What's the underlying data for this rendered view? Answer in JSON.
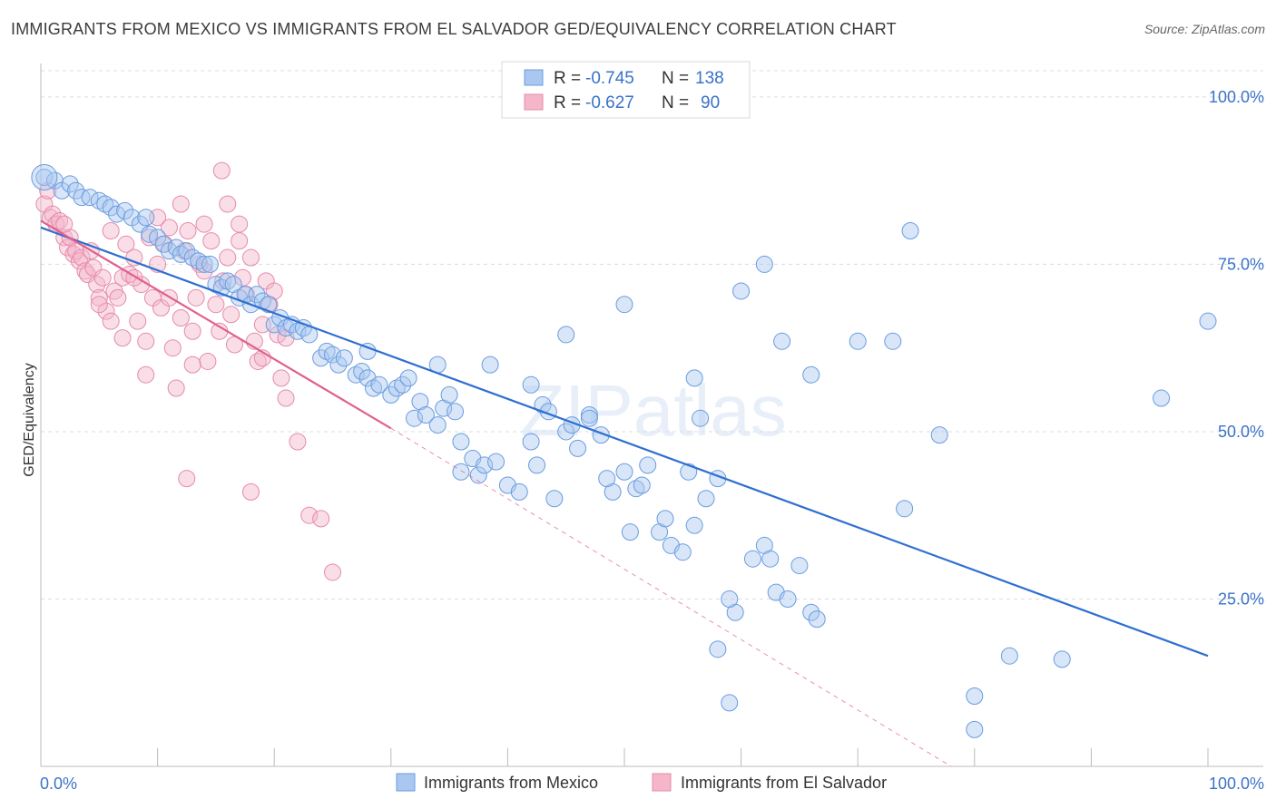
{
  "title": "IMMIGRANTS FROM MEXICO VS IMMIGRANTS FROM EL SALVADOR GED/EQUIVALENCY CORRELATION CHART",
  "source": "Source: ZipAtlas.com",
  "watermark": "ZIPatlas",
  "colors": {
    "blue": "#2e6fd1",
    "blue_fill": "#a9c7f0",
    "pink": "#e0608e",
    "pink_fill": "#f5b6ca",
    "axis_text": "#3a72c9"
  },
  "legend": {
    "r_label": "R =",
    "n_label": "N =",
    "rows": [
      {
        "r": "-0.745",
        "n": "138"
      },
      {
        "r": "-0.627",
        "n": "90"
      }
    ]
  },
  "chart_data": {
    "type": "scatter",
    "xlabel": "",
    "ylabel": "GED/Equivalency",
    "xlim": [
      0,
      100
    ],
    "ylim": [
      0,
      105
    ],
    "x_tick_labels": [
      "0.0%",
      "100.0%"
    ],
    "y_tick_labels": [
      "100.0%",
      "75.0%",
      "50.0%",
      "25.0%"
    ],
    "y_ticks": [
      100,
      75,
      50,
      25
    ],
    "grid": true,
    "legend_placement": "bottom",
    "series": [
      {
        "name": "Immigrants from Mexico",
        "color": "blue",
        "trend": [
          [
            0,
            80.5
          ],
          [
            100,
            16.5
          ]
        ],
        "points": [
          [
            0.3,
            88
          ],
          [
            1.2,
            87.5
          ],
          [
            1.8,
            86
          ],
          [
            2.5,
            87
          ],
          [
            3,
            86
          ],
          [
            3.5,
            85
          ],
          [
            4.2,
            85
          ],
          [
            5,
            84.5
          ],
          [
            5.5,
            84
          ],
          [
            6,
            83.5
          ],
          [
            6.5,
            82.5
          ],
          [
            7.2,
            83
          ],
          [
            7.8,
            82
          ],
          [
            8.5,
            81
          ],
          [
            9,
            82
          ],
          [
            9.3,
            79.5
          ],
          [
            10,
            79
          ],
          [
            10.5,
            78
          ],
          [
            11,
            77
          ],
          [
            11.6,
            77.5
          ],
          [
            12,
            76.5
          ],
          [
            12.5,
            77
          ],
          [
            13,
            76
          ],
          [
            13.5,
            75.5
          ],
          [
            14,
            75
          ],
          [
            14.5,
            75
          ],
          [
            15,
            72
          ],
          [
            15.5,
            71.5
          ],
          [
            16,
            72.5
          ],
          [
            16.5,
            72
          ],
          [
            17,
            70
          ],
          [
            17.5,
            70.5
          ],
          [
            18,
            69
          ],
          [
            18.5,
            70.5
          ],
          [
            19,
            69.5
          ],
          [
            19.5,
            69
          ],
          [
            20,
            66
          ],
          [
            20.5,
            67
          ],
          [
            21,
            65.5
          ],
          [
            21.5,
            66
          ],
          [
            22,
            65
          ],
          [
            22.5,
            65.5
          ],
          [
            23,
            64.5
          ],
          [
            24,
            61
          ],
          [
            24.5,
            62
          ],
          [
            25,
            61.5
          ],
          [
            25.5,
            60
          ],
          [
            26,
            61
          ],
          [
            27,
            58.5
          ],
          [
            27.5,
            59
          ],
          [
            28,
            58
          ],
          [
            28.5,
            56.5
          ],
          [
            29,
            57
          ],
          [
            30,
            55.5
          ],
          [
            30.5,
            56.5
          ],
          [
            31,
            57
          ],
          [
            31.5,
            58
          ],
          [
            32,
            52
          ],
          [
            32.5,
            54.5
          ],
          [
            33,
            52.5
          ],
          [
            34,
            51
          ],
          [
            34.5,
            53.5
          ],
          [
            35,
            55.5
          ],
          [
            35.5,
            53
          ],
          [
            36,
            48.5
          ],
          [
            37,
            46
          ],
          [
            37.5,
            43.5
          ],
          [
            38,
            45
          ],
          [
            39,
            45.5
          ],
          [
            40,
            42
          ],
          [
            41,
            41
          ],
          [
            42,
            48.5
          ],
          [
            42.5,
            45
          ],
          [
            43,
            54
          ],
          [
            43.5,
            53
          ],
          [
            44,
            40
          ],
          [
            45,
            50
          ],
          [
            46,
            47.5
          ],
          [
            47,
            52.5
          ],
          [
            48,
            49.5
          ],
          [
            49,
            41
          ],
          [
            50,
            44
          ],
          [
            50.5,
            35
          ],
          [
            51,
            41.5
          ],
          [
            52,
            45
          ],
          [
            53,
            35
          ],
          [
            53.5,
            37
          ],
          [
            54,
            33
          ],
          [
            55,
            32
          ],
          [
            55.5,
            44
          ],
          [
            56,
            36
          ],
          [
            57,
            40
          ],
          [
            58,
            17.5
          ],
          [
            59,
            9.5
          ],
          [
            59.5,
            23
          ],
          [
            61,
            31
          ],
          [
            62,
            33
          ],
          [
            62.5,
            31
          ],
          [
            63,
            26
          ],
          [
            64,
            25
          ],
          [
            65,
            30
          ],
          [
            66,
            23
          ],
          [
            66.5,
            22
          ],
          [
            56,
            58
          ],
          [
            58,
            43
          ],
          [
            59,
            25
          ],
          [
            62,
            75
          ],
          [
            63.5,
            63.5
          ],
          [
            66,
            58.5
          ],
          [
            70,
            63.5
          ],
          [
            73,
            63.5
          ],
          [
            74,
            38.5
          ],
          [
            74.5,
            80
          ],
          [
            77,
            49.5
          ],
          [
            80,
            10.5
          ],
          [
            80,
            5.5
          ],
          [
            83,
            16.5
          ],
          [
            87.5,
            16
          ],
          [
            96,
            55
          ],
          [
            100,
            66.5
          ],
          [
            50,
            69
          ],
          [
            60,
            71
          ],
          [
            45,
            64.5
          ],
          [
            38.5,
            60
          ],
          [
            28,
            62
          ],
          [
            34,
            60
          ],
          [
            42,
            57
          ],
          [
            47,
            52
          ],
          [
            36,
            44
          ],
          [
            45.5,
            51
          ],
          [
            48.5,
            43
          ],
          [
            51.5,
            42
          ],
          [
            56.5,
            52
          ]
        ]
      },
      {
        "name": "Immigrants from El Salvador",
        "color": "pink",
        "trend": [
          [
            0,
            81.5
          ],
          [
            30,
            50.5
          ]
        ],
        "trend_extension": [
          [
            30,
            50.5
          ],
          [
            78,
            0
          ]
        ],
        "points": [
          [
            0.3,
            84
          ],
          [
            0.6,
            86
          ],
          [
            0.8,
            82
          ],
          [
            1,
            82.5
          ],
          [
            1.3,
            81
          ],
          [
            1.6,
            81.5
          ],
          [
            2,
            79
          ],
          [
            2.3,
            77.5
          ],
          [
            2.5,
            79
          ],
          [
            2.8,
            76.5
          ],
          [
            3,
            77
          ],
          [
            3.3,
            75.5
          ],
          [
            3.5,
            76
          ],
          [
            3.8,
            74
          ],
          [
            4,
            73.5
          ],
          [
            4.3,
            77
          ],
          [
            4.5,
            74.5
          ],
          [
            4.8,
            72
          ],
          [
            5,
            70
          ],
          [
            5.3,
            73
          ],
          [
            5.6,
            68
          ],
          [
            6,
            66.5
          ],
          [
            6.3,
            71
          ],
          [
            6.6,
            70
          ],
          [
            7,
            73
          ],
          [
            7.3,
            78
          ],
          [
            7.6,
            73.5
          ],
          [
            8,
            76
          ],
          [
            8.3,
            66.5
          ],
          [
            8.6,
            72
          ],
          [
            9,
            63.5
          ],
          [
            9.3,
            79
          ],
          [
            9.6,
            70
          ],
          [
            10,
            75
          ],
          [
            10.3,
            68.5
          ],
          [
            10.6,
            78
          ],
          [
            11,
            80.5
          ],
          [
            11.3,
            62.5
          ],
          [
            11.6,
            56.5
          ],
          [
            12,
            67
          ],
          [
            12.3,
            77
          ],
          [
            12.6,
            80
          ],
          [
            13,
            65
          ],
          [
            13.3,
            70
          ],
          [
            13.6,
            75
          ],
          [
            14,
            74
          ],
          [
            14.3,
            60.5
          ],
          [
            14.6,
            78.5
          ],
          [
            15,
            69
          ],
          [
            15.3,
            65
          ],
          [
            15.6,
            72.5
          ],
          [
            16,
            76
          ],
          [
            16.3,
            67.5
          ],
          [
            16.6,
            63
          ],
          [
            17,
            78.5
          ],
          [
            17.3,
            73
          ],
          [
            17.6,
            70.5
          ],
          [
            18,
            76
          ],
          [
            18.3,
            63.5
          ],
          [
            18.6,
            60.5
          ],
          [
            19,
            61
          ],
          [
            19.3,
            72.5
          ],
          [
            19.6,
            69
          ],
          [
            20,
            71
          ],
          [
            20.3,
            64.5
          ],
          [
            20.6,
            58
          ],
          [
            21,
            55
          ],
          [
            22,
            48.5
          ],
          [
            23,
            37.5
          ],
          [
            24,
            37
          ],
          [
            25,
            29
          ],
          [
            12.5,
            43
          ],
          [
            18,
            41
          ],
          [
            15.5,
            89
          ],
          [
            12,
            84
          ],
          [
            14,
            81
          ],
          [
            2,
            81
          ],
          [
            6,
            80
          ],
          [
            8,
            73
          ],
          [
            10,
            82
          ],
          [
            16,
            84
          ],
          [
            17,
            81
          ],
          [
            19,
            66
          ],
          [
            21,
            64
          ],
          [
            9,
            58.5
          ],
          [
            11,
            70
          ],
          [
            13,
            60
          ],
          [
            7,
            64
          ],
          [
            5,
            69
          ]
        ]
      }
    ]
  }
}
